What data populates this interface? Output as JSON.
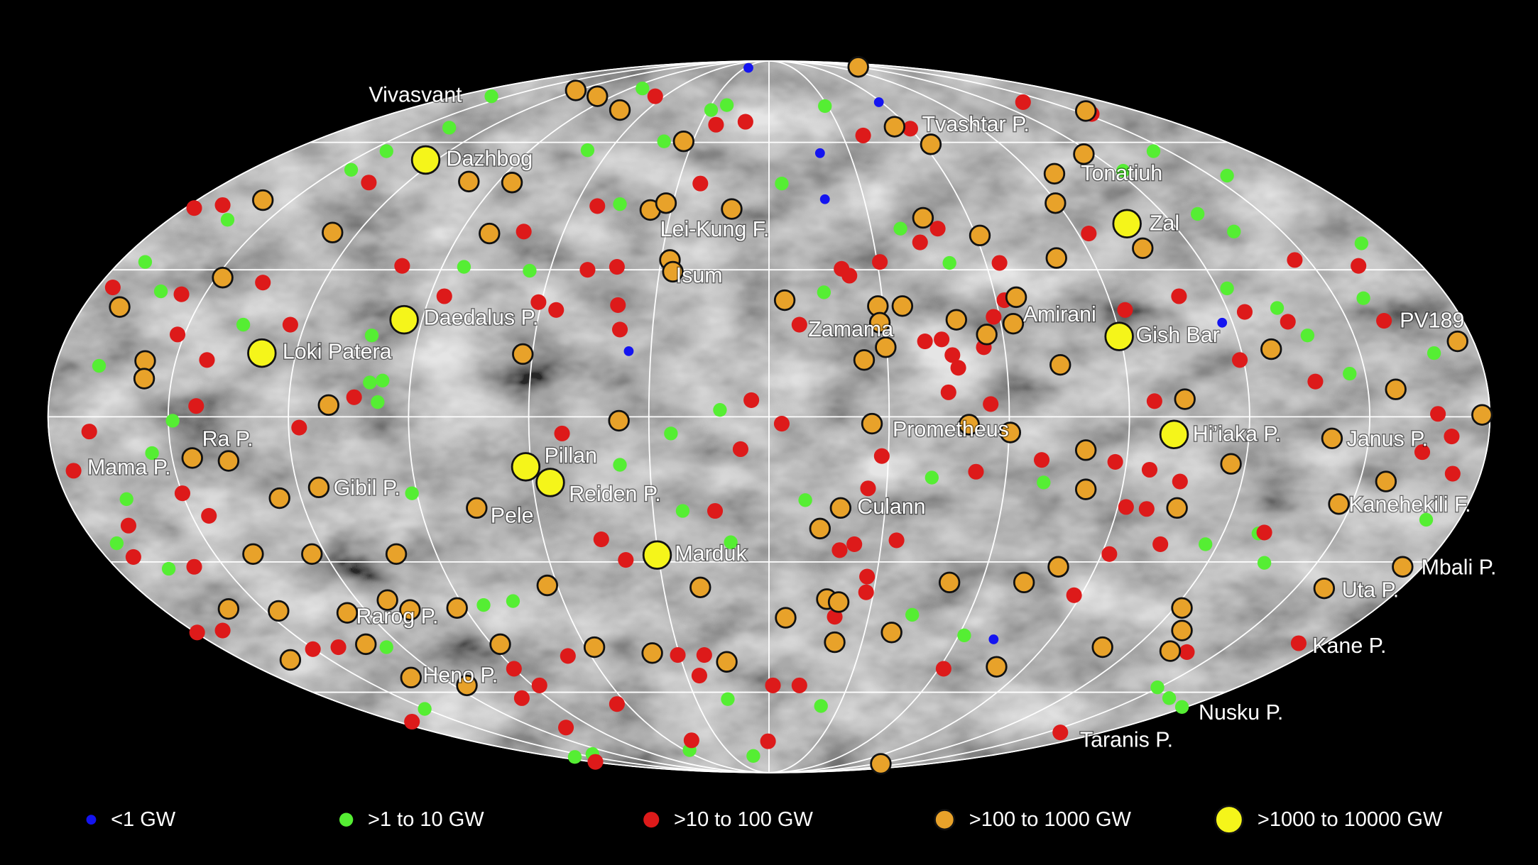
{
  "map": {
    "features": [
      "Vivasvant",
      "Dazhbog",
      "Tvashtar P.",
      "Tonatiuh",
      "Zal",
      "Lei-Kung F.",
      "Isum",
      "Daedalus P.",
      "Loki Patera",
      "Zamama",
      "Amirani",
      "Gish Bar",
      "PV189",
      "Prometheus",
      "Hi’iaka P.",
      "Janus P.",
      "Ra P.",
      "Mama P.",
      "Pillan",
      "Gibil P.",
      "Reiden P.",
      "Pele",
      "Culann",
      "Kanehekili F.",
      "Marduk",
      "Mbali P.",
      "Uta P.",
      "Rarog P.",
      "Kane P.",
      "Heno P.",
      "Nusku P.",
      "Taranis P."
    ],
    "legend": [
      {
        "label": "<1 GW",
        "color": "#1414f0"
      },
      {
        "label": ">1 to 10 GW",
        "color": "#55ee33"
      },
      {
        "label": ">10 to 100 GW",
        "color": "#dd1a1a"
      },
      {
        "label": ">100 to 1000 GW",
        "color": "#e8a22a"
      },
      {
        "label": ">1000 to 10000 GW",
        "color": "#f5f51a"
      }
    ]
  }
}
